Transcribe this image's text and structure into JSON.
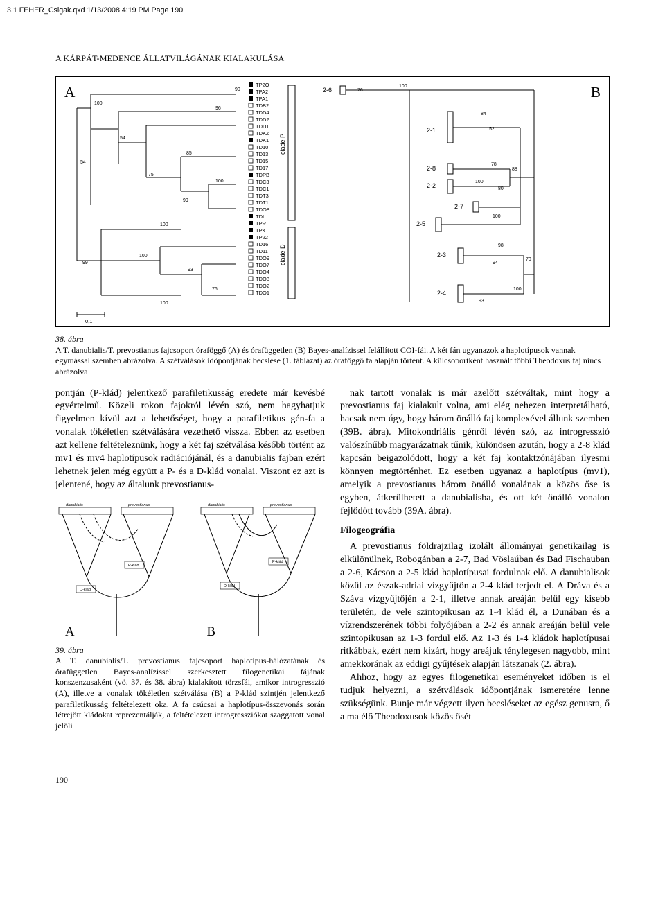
{
  "header_line": "3.1 FEHER_Csigak.qxd  1/13/2008  4:19 PM  Page 190",
  "running_head": "A KÁRPÁT-MEDENCE ÁLLATVILÁGÁNAK KIALAKULÁSA",
  "fig38": {
    "panel_A_label": "A",
    "panel_B_label": "B",
    "cladeP_label": "clade P",
    "cladeD_label": "clade D",
    "scale_bar_label": "0,1",
    "tips": [
      "TP2O",
      "TPA2",
      "TPA1",
      "TDB2",
      "TDD4",
      "TDD2",
      "TDD1",
      "TDKZ",
      "TDK1",
      "TD10",
      "TD13",
      "TD15",
      "TD17",
      "TDPB",
      "TDC3",
      "TDC1",
      "TDT3",
      "TDT1",
      "TDO8",
      "TDI",
      "TPR",
      "TPK",
      "TP22",
      "TD16",
      "TD11",
      "TDO9",
      "TDO7",
      "TDO4",
      "TDO3",
      "TDO2",
      "TDO1"
    ],
    "tip_filled": [
      true,
      true,
      true,
      false,
      false,
      false,
      false,
      false,
      true,
      false,
      false,
      false,
      false,
      true,
      false,
      false,
      false,
      false,
      false,
      true,
      true,
      true,
      true,
      false,
      false,
      false,
      false,
      false,
      false,
      false,
      false
    ],
    "bootstrap_A": [
      "100",
      "54",
      "96",
      "54",
      "75",
      "85",
      "99",
      "100",
      "100",
      "100",
      "99",
      "93",
      "100",
      "76",
      "90"
    ],
    "bootstrap_B": [
      "76",
      "100",
      "84",
      "52",
      "78",
      "88",
      "100",
      "80",
      "100",
      "98",
      "94",
      "70",
      "100",
      "93"
    ],
    "cladesB": [
      "2-6",
      "2-1",
      "2-8",
      "2-2",
      "2-7",
      "2-5",
      "2-3",
      "2-4"
    ],
    "line_color": "#000000",
    "bg": "#ffffff"
  },
  "caption38": {
    "num": "38. ábra",
    "text": "A T. danubialis/T. prevostianus fajcsoport óraföggő (A) és órafüggetlen (B) Bayes-analízissel felállított COI-fái. A két fán ugyanazok a haplotípusok vannak egymással szemben ábrázolva. A szétválások időpontjának becslése (1. táblázat) az óraföggő fa alapján történt. A külcsoportként használt többi Theodoxus faj nincs ábrázolva"
  },
  "body_col": {
    "p1": "pontján (P-klád) jelentkező parafiletikusság eredete már kevésbé egyértelmű. Közeli rokon fajokról lévén szó, nem hagyhatjuk figyelmen kívül azt a lehetőséget, hogy a parafiletikus gén-fa a vonalak tökéletlen szétválására vezethető vissza. Ebben az esetben azt kellene feltételeznünk, hogy a két faj szétválása később történt az mv1 és mv4 haplotípusok radiációjánál, és a danubialis fajban ezért lehetnek jelen még együtt a P- és a D-klád vonalai. Viszont ez azt is jelentené, hogy az általunk prevostianus-",
    "p2": "nak tartott vonalak is már azelőtt szétváltak, mint hogy a prevostianus faj kialakult volna, ami elég nehezen interpretálható, hacsak nem úgy, hogy három önálló faj komplexével állunk szemben (39B. ábra). Mitokondriális génről lévén szó, az introgresszió valószínűbb magyarázatnak tűnik, különösen azután, hogy a 2-8 klád kapcsán beigazolódott, hogy a két faj kontaktzónájában ilyesmi könnyen megtörténhet. Ez esetben ugyanaz a haplotípus (mv1), amelyik a prevostianus három önálló vonalának a közös őse is egyben, átkerülhetett a danubialisba, és ott két önálló vonalon fejlődött tovább (39A. ábra).",
    "h1": "Filogeográfia",
    "p3": "A prevostianus földrajzilag izolált állományai genetikailag is elkülönülnek, Robogánban a 2-7, Bad Vöslaúban és Bad Fischauban a 2-6, Kácson a 2-5 klád haplotípusai fordulnak elő. A danubialisok közül az észak-adriai vízgyűjtőn a 2-4 klád terjedt el. A Dráva és a Száva vízgyűjtőjén a 2-1, illetve annak areáján belül egy kisebb területén, de vele szintopikusan az 1-4 klád él, a Dunában és a vízrendszerének többi folyójában a 2-2 és annak areáján belül vele szintopikusan az 1-3 fordul elő. Az 1-3 és 1-4 kládok haplotípusai ritkábbak, ezért nem kizárt, hogy areájuk ténylegesen nagyobb, mint amekkorának az eddigi gyűjtések alapján látszanak (2. ábra).",
    "p4": "Ahhoz, hogy az egyes filogenetikai eseményeket időben is el tudjuk helyezni, a szétválások időpontjának ismeretére lenne szükségünk. Bunje már végzett ilyen becsléseket az egész genusra, ő a ma élő Theodoxusok közös ősét"
  },
  "fig39": {
    "panel_A_label": "A",
    "panel_B_label": "B",
    "top_labels": [
      "danubialis",
      "prevostianus",
      "danubialis",
      "prevostianus"
    ],
    "tip_groups": [
      "2-1",
      "2-2",
      "1-4",
      "1-3",
      "2-4",
      "2-3",
      "2-8",
      "2-7",
      "2-6",
      "2-5"
    ],
    "klad_P": "P-klád",
    "klad_D": "D-klád"
  },
  "caption39": {
    "num": "39. ábra",
    "text": "A T. danubialis/T. prevostianus fajcsoport haplotípus-hálózatának és órafüggetlen Bayes-analízissel szerkesztett filogenetikai fájának konszenzusaként (vö. 37. és 38. ábra) kialakított törzsfái, amikor introgresszió (A), illetve a vonalak tökéletlen szétválása (B) a P-klád szintjén jelentkező parafiletikusság feltételezett oka. A fa csúcsai a haplotípus-összevonás során létrejött kládokat reprezentálják, a feltételezett introgressziókat szaggatott vonal jelöli"
  },
  "page_number": "190"
}
